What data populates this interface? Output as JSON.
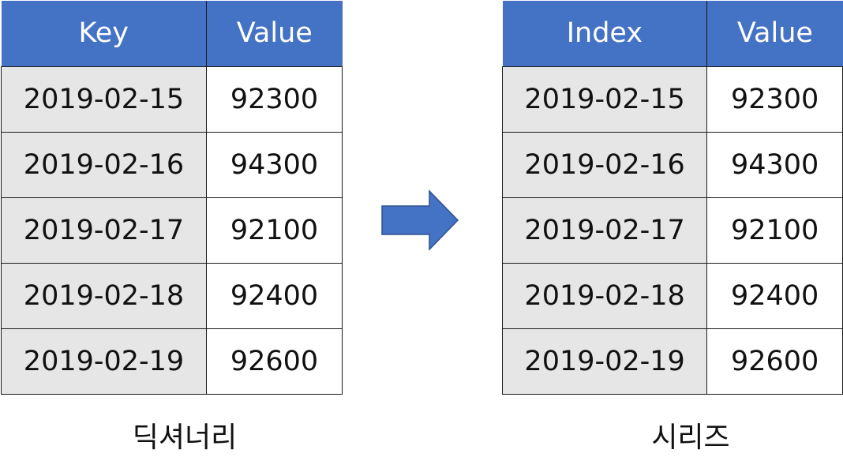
{
  "dictionary": {
    "headers": [
      "Key",
      "Value"
    ],
    "rows": [
      [
        "2019-02-15",
        "92300"
      ],
      [
        "2019-02-16",
        "94300"
      ],
      [
        "2019-02-17",
        "92100"
      ],
      [
        "2019-02-18",
        "92400"
      ],
      [
        "2019-02-19",
        "92600"
      ]
    ],
    "caption": "딕셔너리"
  },
  "series": {
    "headers": [
      "Index",
      "Value"
    ],
    "rows": [
      [
        "2019-02-15",
        "92300"
      ],
      [
        "2019-02-16",
        "94300"
      ],
      [
        "2019-02-17",
        "92100"
      ],
      [
        "2019-02-18",
        "92400"
      ],
      [
        "2019-02-19",
        "92600"
      ]
    ],
    "caption": "시리즈"
  },
  "arrow": {
    "icon": "right-arrow-icon",
    "fill": "#4472c4",
    "stroke": "#2f528f"
  },
  "colors": {
    "header_bg": "#4472c4",
    "index_bg": "#e6e6e6",
    "value_bg": "#ffffff"
  }
}
